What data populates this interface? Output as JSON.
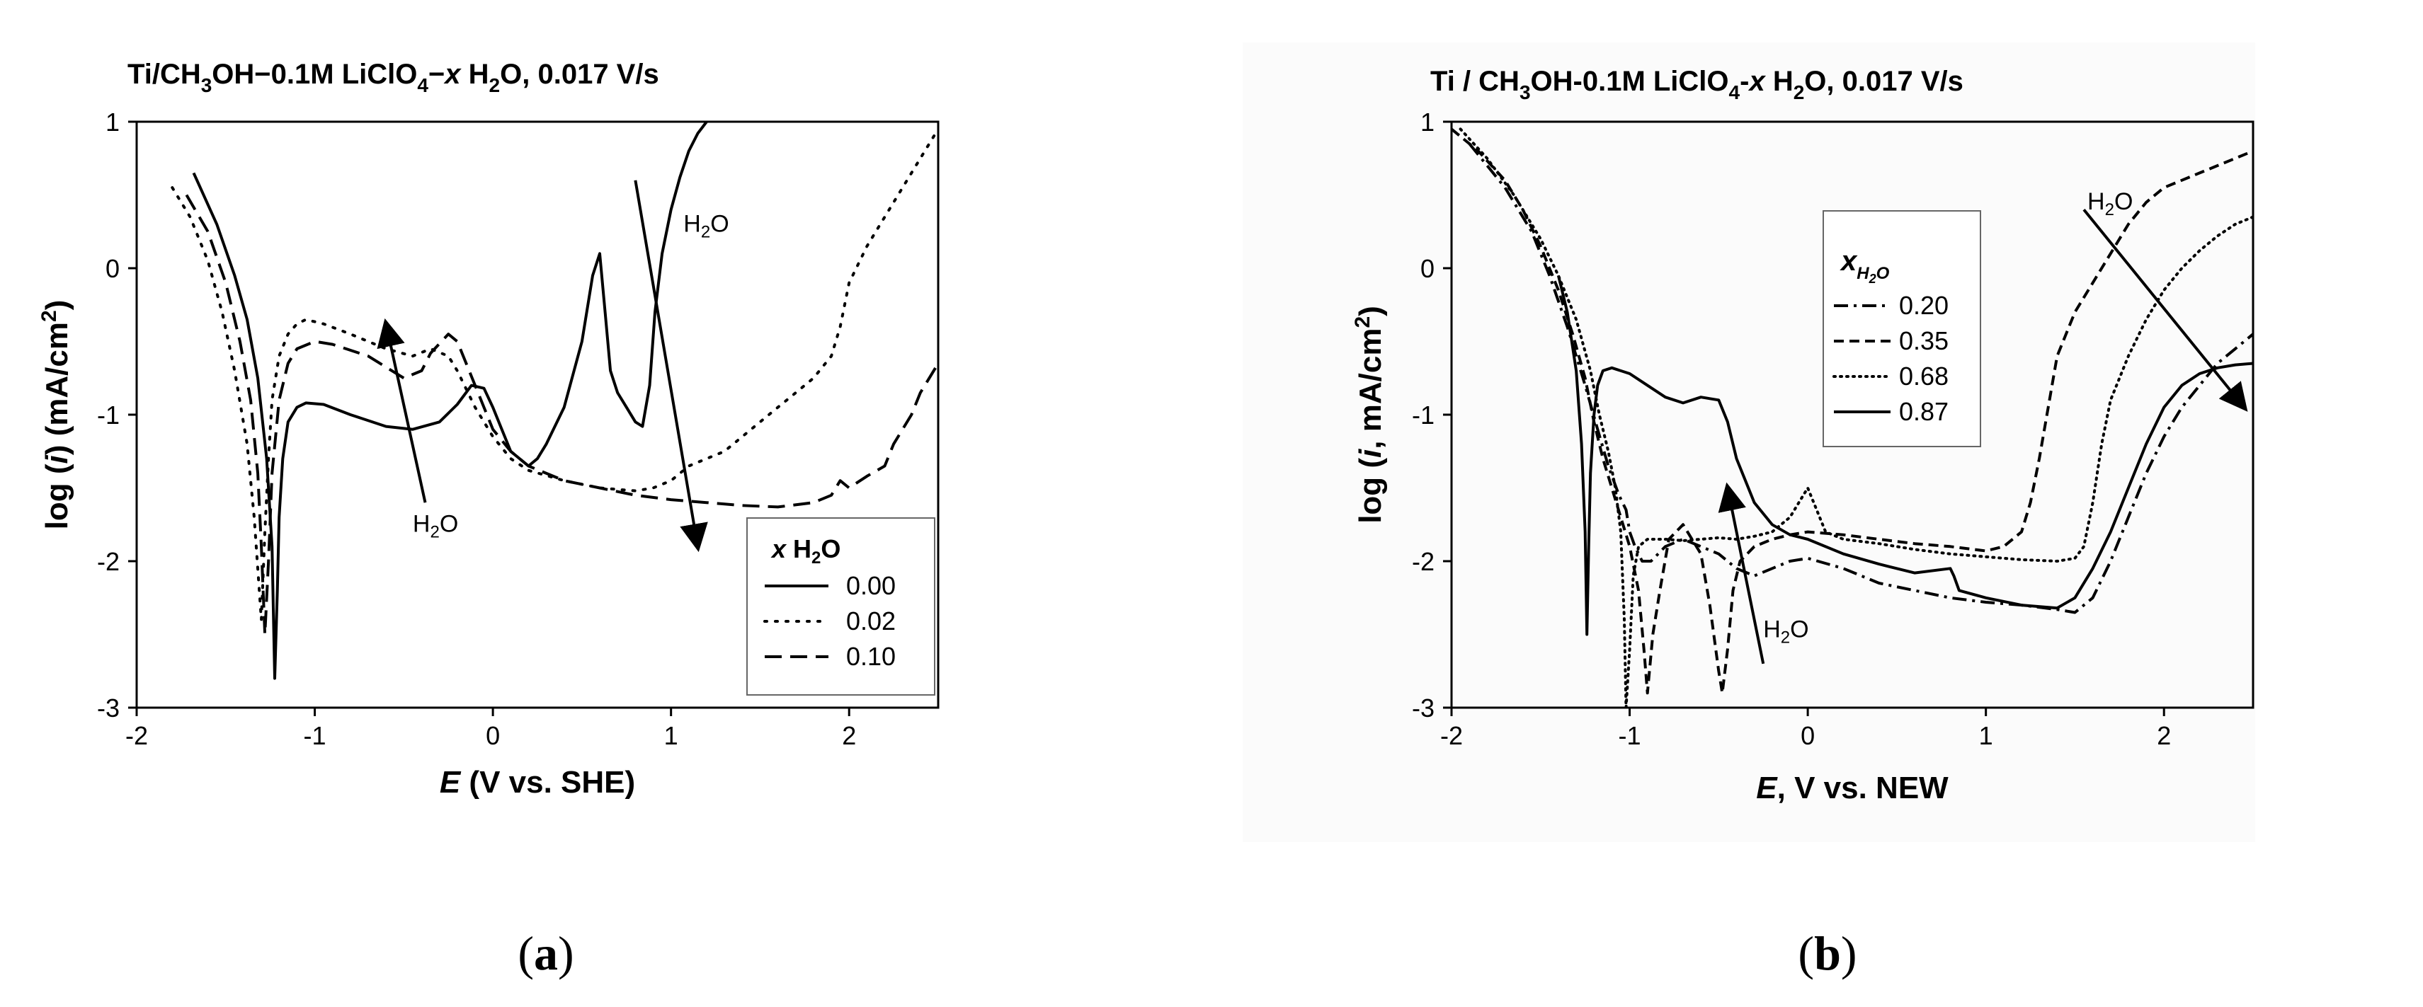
{
  "chart_data": [
    {
      "type": "line",
      "panel_label": "a",
      "title": {
        "pre": "Ti/CH",
        "s1": "3",
        "mid": "OH−0.1M LiClO",
        "s2": "4",
        "dash": "−",
        "x": "x",
        "post1": " H",
        "s3": "2",
        "post2": "O, 0.017 V/s"
      },
      "xlabel": {
        "var": "E",
        "rest": " (V vs. SHE)"
      },
      "ylabel": {
        "pre": "log (",
        "var": "i",
        "post": ") (mA/cm",
        "sup": "2",
        "end": ")"
      },
      "xlim": [
        -2,
        2.5
      ],
      "ylim": [
        -3,
        1
      ],
      "xticks": [
        -2,
        -1,
        0,
        1,
        2
      ],
      "yticks": [
        -3,
        -2,
        -1,
        0,
        1
      ],
      "legend": {
        "title_x": "x",
        "title_h": " H",
        "title_sub": "2",
        "title_o": "O",
        "entries": [
          "0.00",
          "0.02",
          "0.10"
        ],
        "placement": "bottom-right"
      },
      "annotations": [
        {
          "text": "H",
          "sub": "2",
          "post": "O",
          "x": -0.45,
          "y": -1.8
        },
        {
          "text": "H",
          "sub": "2",
          "post": "O",
          "x": 1.07,
          "y": 0.25
        }
      ],
      "arrows": [
        {
          "from": [
            -0.38,
            -1.6
          ],
          "to": [
            -0.6,
            -0.38
          ]
        },
        {
          "from": [
            0.8,
            0.6
          ],
          "to": [
            1.15,
            -1.9
          ]
        }
      ],
      "series": [
        {
          "name": "0.00",
          "dash": "solid",
          "x": [
            -1.68,
            -1.55,
            -1.45,
            -1.38,
            -1.32,
            -1.27,
            -1.24,
            -1.225,
            -1.21,
            -1.2,
            -1.18,
            -1.15,
            -1.1,
            -1.05,
            -0.95,
            -0.8,
            -0.6,
            -0.45,
            -0.3,
            -0.2,
            -0.12,
            -0.05,
            0.0,
            0.05,
            0.1,
            0.2,
            0.25,
            0.3,
            0.4,
            0.5,
            0.56,
            0.6,
            0.63,
            0.66,
            0.7,
            0.75,
            0.8,
            0.84,
            0.88,
            0.91,
            0.95,
            1.0,
            1.05,
            1.1,
            1.15,
            1.2
          ],
          "y": [
            0.65,
            0.3,
            -0.05,
            -0.35,
            -0.75,
            -1.3,
            -1.9,
            -2.8,
            -2.2,
            -1.7,
            -1.3,
            -1.05,
            -0.95,
            -0.92,
            -0.93,
            -1.0,
            -1.08,
            -1.1,
            -1.05,
            -0.93,
            -0.8,
            -0.82,
            -0.95,
            -1.1,
            -1.25,
            -1.35,
            -1.3,
            -1.2,
            -0.95,
            -0.5,
            -0.05,
            0.1,
            -0.3,
            -0.7,
            -0.85,
            -0.95,
            -1.05,
            -1.08,
            -0.8,
            -0.3,
            0.1,
            0.4,
            0.62,
            0.8,
            0.92,
            1.0
          ]
        },
        {
          "name": "0.02",
          "dash": "dotted",
          "x": [
            -1.8,
            -1.7,
            -1.6,
            -1.52,
            -1.45,
            -1.38,
            -1.34,
            -1.3,
            -1.28,
            -1.26,
            -1.24,
            -1.2,
            -1.15,
            -1.1,
            -1.05,
            -0.95,
            -0.8,
            -0.6,
            -0.45,
            -0.35,
            -0.25,
            -0.2,
            -0.1,
            0.0,
            0.1,
            0.2,
            0.4,
            0.6,
            0.8,
            0.9,
            1.0,
            1.1,
            1.2,
            1.3,
            1.4,
            1.5,
            1.6,
            1.7,
            1.8,
            1.9,
            1.95,
            2.0,
            2.1,
            2.2,
            2.3,
            2.4,
            2.5
          ],
          "y": [
            0.55,
            0.35,
            0.05,
            -0.3,
            -0.7,
            -1.2,
            -1.7,
            -2.4,
            -1.8,
            -1.3,
            -0.9,
            -0.6,
            -0.45,
            -0.38,
            -0.35,
            -0.38,
            -0.45,
            -0.55,
            -0.6,
            -0.55,
            -0.6,
            -0.7,
            -0.95,
            -1.15,
            -1.3,
            -1.38,
            -1.45,
            -1.5,
            -1.52,
            -1.5,
            -1.45,
            -1.35,
            -1.3,
            -1.25,
            -1.15,
            -1.05,
            -0.95,
            -0.85,
            -0.75,
            -0.6,
            -0.4,
            -0.1,
            0.15,
            0.35,
            0.55,
            0.75,
            0.95
          ]
        },
        {
          "name": "0.10",
          "dash": "dashed",
          "x": [
            -1.72,
            -1.6,
            -1.5,
            -1.42,
            -1.36,
            -1.32,
            -1.3,
            -1.28,
            -1.26,
            -1.24,
            -1.2,
            -1.15,
            -1.1,
            -1.0,
            -0.9,
            -0.7,
            -0.5,
            -0.4,
            -0.35,
            -0.25,
            -0.2,
            -0.15,
            -0.05,
            0.0,
            0.1,
            0.2,
            0.4,
            0.6,
            0.8,
            1.0,
            1.2,
            1.4,
            1.6,
            1.8,
            1.9,
            1.95,
            2.0,
            2.1,
            2.2,
            2.25,
            2.3,
            2.35,
            2.4,
            2.45,
            2.5
          ],
          "y": [
            0.5,
            0.25,
            -0.1,
            -0.5,
            -0.9,
            -1.4,
            -1.9,
            -2.5,
            -2.0,
            -1.4,
            -0.9,
            -0.65,
            -0.55,
            -0.5,
            -0.52,
            -0.6,
            -0.75,
            -0.7,
            -0.58,
            -0.45,
            -0.5,
            -0.65,
            -0.95,
            -1.1,
            -1.25,
            -1.35,
            -1.45,
            -1.5,
            -1.55,
            -1.58,
            -1.6,
            -1.62,
            -1.63,
            -1.6,
            -1.55,
            -1.45,
            -1.5,
            -1.42,
            -1.35,
            -1.2,
            -1.1,
            -1.0,
            -0.85,
            -0.75,
            -0.65
          ]
        }
      ]
    },
    {
      "type": "line",
      "panel_label": "b",
      "title": {
        "pre": "Ti / CH",
        "s1": "3",
        "mid": "OH-0.1M LiClO",
        "s2": "4",
        "dash": "-",
        "x": "x",
        "post1": " H",
        "s3": "2",
        "post2": "O, 0.017 V/s"
      },
      "xlabel": {
        "var": "E",
        "rest": ", V vs. NEW"
      },
      "ylabel": {
        "pre": "log (",
        "var": "i",
        "post": ", mA/cm",
        "sup": "2",
        "end": ")"
      },
      "xlim": [
        -2,
        2.5
      ],
      "ylim": [
        -3,
        1
      ],
      "xticks": [
        -2,
        -1,
        0,
        1,
        2
      ],
      "yticks": [
        -3,
        -2,
        -1,
        0,
        1
      ],
      "legend": {
        "title_x": "x",
        "title_h": "H",
        "title_sub": "2",
        "title_o": "O",
        "entries": [
          "0.20",
          "0.35",
          "0.68",
          "0.87"
        ],
        "placement": "top-center"
      },
      "annotations": [
        {
          "text": "H",
          "sub": "2",
          "post": "O",
          "x": -0.25,
          "y": -2.52
        },
        {
          "text": "H",
          "sub": "2",
          "post": "O",
          "x": 1.57,
          "y": 0.4
        }
      ],
      "arrows": [
        {
          "from": [
            -0.25,
            -2.7
          ],
          "to": [
            -0.45,
            -1.5
          ]
        },
        {
          "from": [
            1.55,
            0.4
          ],
          "to": [
            2.45,
            -0.95
          ]
        }
      ],
      "series": [
        {
          "name": "0.20",
          "dash": "dashdot",
          "x": [
            -1.9,
            -1.7,
            -1.55,
            -1.45,
            -1.35,
            -1.25,
            -1.18,
            -1.12,
            -1.06,
            -1.02,
            -1.0,
            -0.97,
            -0.93,
            -0.88,
            -0.8,
            -0.7,
            -0.6,
            -0.5,
            -0.4,
            -0.3,
            -0.2,
            -0.1,
            0.0,
            0.2,
            0.4,
            0.6,
            0.8,
            1.0,
            1.2,
            1.4,
            1.5,
            1.6,
            1.7,
            1.8,
            1.9,
            2.0,
            2.1,
            2.2,
            2.3,
            2.4,
            2.5
          ],
          "y": [
            0.85,
            0.55,
            0.25,
            -0.05,
            -0.4,
            -0.8,
            -1.1,
            -1.35,
            -1.55,
            -1.65,
            -1.8,
            -1.9,
            -2.0,
            -2.0,
            -1.9,
            -1.85,
            -1.9,
            -1.95,
            -2.05,
            -2.1,
            -2.05,
            -2.0,
            -1.98,
            -2.05,
            -2.15,
            -2.2,
            -2.25,
            -2.28,
            -2.3,
            -2.33,
            -2.35,
            -2.25,
            -2.0,
            -1.7,
            -1.4,
            -1.15,
            -0.95,
            -0.8,
            -0.65,
            -0.55,
            -0.45
          ]
        },
        {
          "name": "0.35",
          "dash": "dashed",
          "x": [
            -2.0,
            -1.85,
            -1.7,
            -1.6,
            -1.5,
            -1.4,
            -1.32,
            -1.25,
            -1.2,
            -1.15,
            -1.1,
            -1.05,
            -1.0,
            -0.95,
            -0.92,
            -0.9,
            -0.87,
            -0.83,
            -0.78,
            -0.7,
            -0.6,
            -0.55,
            -0.5,
            -0.48,
            -0.45,
            -0.42,
            -0.38,
            -0.3,
            -0.2,
            -0.1,
            0.0,
            0.2,
            0.4,
            0.6,
            0.8,
            1.0,
            1.1,
            1.2,
            1.25,
            1.3,
            1.35,
            1.4,
            1.5,
            1.6,
            1.7,
            1.8,
            1.9,
            2.0,
            2.2,
            2.4,
            2.5
          ],
          "y": [
            0.95,
            0.8,
            0.6,
            0.4,
            0.15,
            -0.15,
            -0.45,
            -0.75,
            -1.05,
            -1.3,
            -1.5,
            -1.7,
            -1.9,
            -2.2,
            -2.6,
            -2.9,
            -2.5,
            -2.2,
            -1.85,
            -1.75,
            -1.95,
            -2.3,
            -2.75,
            -2.9,
            -2.6,
            -2.2,
            -2.0,
            -1.9,
            -1.85,
            -1.82,
            -1.8,
            -1.82,
            -1.85,
            -1.88,
            -1.9,
            -1.93,
            -1.9,
            -1.8,
            -1.6,
            -1.3,
            -0.95,
            -0.6,
            -0.3,
            -0.1,
            0.1,
            0.3,
            0.45,
            0.55,
            0.65,
            0.75,
            0.8
          ]
        },
        {
          "name": "0.68",
          "dash": "dotted",
          "x": [
            -1.95,
            -1.8,
            -1.65,
            -1.5,
            -1.4,
            -1.3,
            -1.22,
            -1.17,
            -1.12,
            -1.08,
            -1.05,
            -1.03,
            -1.02,
            -1.0,
            -0.98,
            -0.95,
            -0.9,
            -0.8,
            -0.7,
            -0.6,
            -0.5,
            -0.4,
            -0.3,
            -0.2,
            -0.1,
            -0.05,
            0.0,
            0.05,
            0.1,
            0.2,
            0.4,
            0.6,
            0.8,
            1.0,
            1.2,
            1.4,
            1.5,
            1.55,
            1.6,
            1.65,
            1.7,
            1.8,
            1.9,
            2.0,
            2.1,
            2.2,
            2.3,
            2.4,
            2.5
          ],
          "y": [
            0.95,
            0.75,
            0.5,
            0.2,
            -0.05,
            -0.35,
            -0.7,
            -1.0,
            -1.25,
            -1.5,
            -1.8,
            -2.4,
            -3.0,
            -2.6,
            -2.1,
            -1.9,
            -1.85,
            -1.85,
            -1.86,
            -1.85,
            -1.84,
            -1.85,
            -1.83,
            -1.8,
            -1.7,
            -1.6,
            -1.5,
            -1.65,
            -1.8,
            -1.85,
            -1.88,
            -1.92,
            -1.95,
            -1.97,
            -1.99,
            -2.0,
            -1.98,
            -1.9,
            -1.6,
            -1.2,
            -0.9,
            -0.6,
            -0.35,
            -0.15,
            0.0,
            0.12,
            0.22,
            0.3,
            0.35
          ]
        },
        {
          "name": "0.87",
          "dash": "solid",
          "x": [
            -1.4,
            -1.35,
            -1.3,
            -1.27,
            -1.25,
            -1.24,
            -1.23,
            -1.22,
            -1.2,
            -1.18,
            -1.15,
            -1.1,
            -1.0,
            -0.9,
            -0.8,
            -0.7,
            -0.6,
            -0.5,
            -0.45,
            -0.4,
            -0.3,
            -0.2,
            -0.1,
            0.0,
            0.2,
            0.4,
            0.6,
            0.8,
            0.82,
            0.85,
            1.0,
            1.2,
            1.4,
            1.5,
            1.6,
            1.7,
            1.8,
            1.9,
            2.0,
            2.1,
            2.2,
            2.3,
            2.4,
            2.5
          ],
          "y": [
            -0.05,
            -0.3,
            -0.7,
            -1.2,
            -1.8,
            -2.5,
            -1.9,
            -1.4,
            -1.0,
            -0.8,
            -0.7,
            -0.68,
            -0.72,
            -0.8,
            -0.88,
            -0.92,
            -0.88,
            -0.9,
            -1.05,
            -1.3,
            -1.6,
            -1.75,
            -1.82,
            -1.85,
            -1.95,
            -2.02,
            -2.08,
            -2.05,
            -2.1,
            -2.2,
            -2.25,
            -2.3,
            -2.32,
            -2.25,
            -2.05,
            -1.8,
            -1.5,
            -1.2,
            -0.95,
            -0.8,
            -0.72,
            -0.68,
            -0.66,
            -0.65
          ]
        }
      ]
    }
  ]
}
